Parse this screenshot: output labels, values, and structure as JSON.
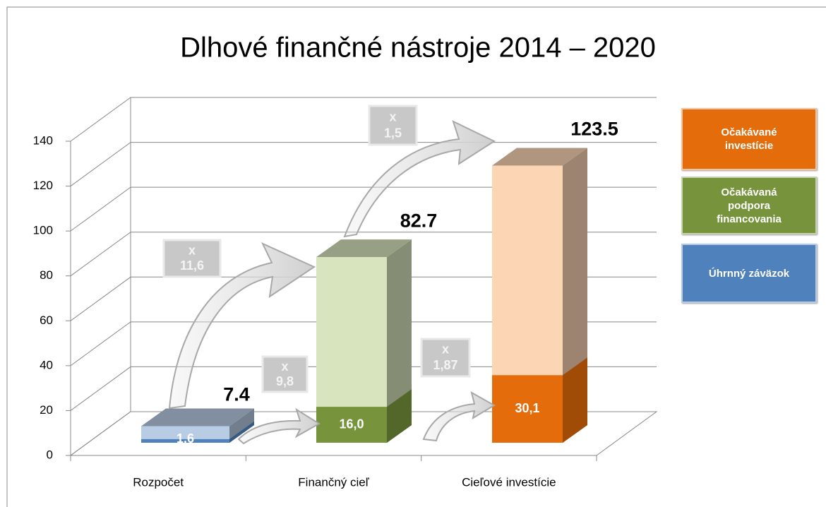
{
  "chart_data": {
    "type": "bar",
    "title": "Dlhové finančné nástroje 2014 – 2020",
    "categories": [
      "Rozpočet",
      "Finančný cieľ",
      "Cieľové investície"
    ],
    "series": [
      {
        "values": [
          7.4,
          82.7,
          123.5
        ],
        "colors": [
          "#b8cce4",
          "#d7e4bd",
          "#fcd5b5"
        ]
      },
      {
        "values": [
          1.6,
          16.0,
          30.1
        ],
        "value_labels": [
          "1,6",
          "16,0",
          "30,1"
        ],
        "colors": [
          "#4f81bd",
          "#77933c",
          "#e46c0a"
        ]
      }
    ],
    "ylim": [
      0,
      140
    ],
    "yticks": [
      0,
      20,
      40,
      60,
      80,
      100,
      120,
      140
    ],
    "grid": true,
    "legend": [
      {
        "name": "Očakávané investície",
        "color": "#e46c0a"
      },
      {
        "name": "Očakávaná podpora financovania",
        "color": "#77933c"
      },
      {
        "name": "Úhrnný záväzok",
        "color": "#4f81bd"
      }
    ],
    "annotations": [
      {
        "lines": [
          "x",
          "11,6"
        ]
      },
      {
        "lines": [
          "x",
          "1,5"
        ]
      },
      {
        "lines": [
          "x",
          "9,8"
        ]
      },
      {
        "lines": [
          "x",
          "1,87"
        ]
      }
    ]
  }
}
